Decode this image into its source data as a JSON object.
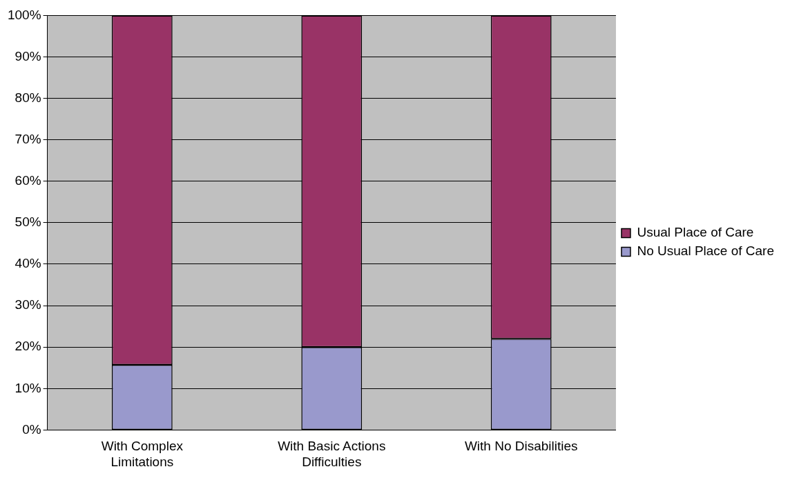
{
  "chart_data": {
    "type": "bar",
    "stacked": true,
    "categories": [
      "With Complex Limitations",
      "With Basic Actions Difficulties",
      "With No Disabilities"
    ],
    "series": [
      {
        "name": "No Usual Place of Care",
        "color": "#9999cc",
        "values": [
          15.7,
          20,
          22
        ]
      },
      {
        "name": "Usual Place of Care",
        "color": "#993366",
        "values": [
          84.3,
          80,
          78
        ]
      }
    ],
    "ylim": [
      0,
      100
    ],
    "yticks": [
      {
        "value": 0,
        "label": "0%"
      },
      {
        "value": 10,
        "label": "10%"
      },
      {
        "value": 20,
        "label": "20%"
      },
      {
        "value": 30,
        "label": "30%"
      },
      {
        "value": 40,
        "label": "40%"
      },
      {
        "value": 50,
        "label": "50%"
      },
      {
        "value": 60,
        "label": "60%"
      },
      {
        "value": 70,
        "label": "70%"
      },
      {
        "value": 80,
        "label": "80%"
      },
      {
        "value": 90,
        "label": "90%"
      },
      {
        "value": 100,
        "label": "100%"
      }
    ],
    "grid": "y",
    "legend": "right"
  }
}
